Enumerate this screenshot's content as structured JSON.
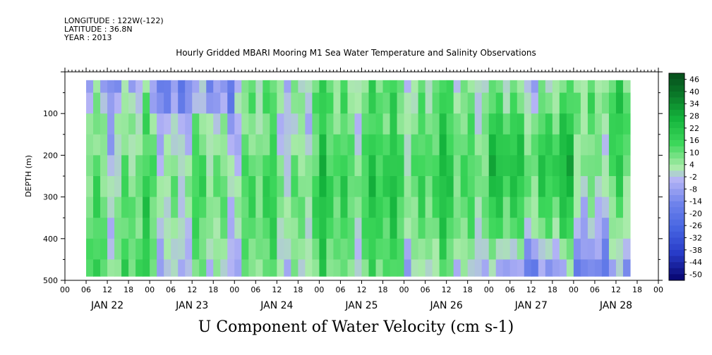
{
  "header": {
    "longitude": "LONGITUDE : 122W(-122)",
    "latitude": "LATITUDE : 36.8N",
    "year": "YEAR : 2013"
  },
  "chart_data": {
    "type": "heatmap",
    "title": "Hourly Gridded MBARI Mooring M1 Sea Water Temperature and Salinity Observations",
    "xlabel": "U Component of Water Velocity (cm s-1)",
    "ylabel": "DEPTH (m)",
    "x_range_hours": [
      0,
      168
    ],
    "ylim": [
      500,
      0
    ],
    "y_ticks": [
      100,
      200,
      300,
      400,
      500
    ],
    "x_tick_labels": [
      "00",
      "06",
      "12",
      "18",
      "00",
      "06",
      "12",
      "18",
      "00",
      "06",
      "12",
      "18",
      "00",
      "06",
      "12",
      "18",
      "00",
      "06",
      "12",
      "18",
      "00",
      "06",
      "12",
      "18",
      "00",
      "06",
      "12",
      "18",
      "00"
    ],
    "day_labels": [
      "JAN 22",
      "JAN 23",
      "JAN 24",
      "JAN 25",
      "JAN 26",
      "JAN 27",
      "JAN 28"
    ],
    "colorbar_labels": [
      "46",
      "40",
      "34",
      "28",
      "22",
      "16",
      "10",
      "4",
      "-2",
      "-8",
      "-14",
      "-20",
      "-26",
      "-32",
      "-38",
      "-44",
      "-50"
    ],
    "depth_bins": [
      25,
      75,
      125,
      175,
      225,
      275,
      325,
      375,
      425,
      475
    ],
    "day_means": [
      [
        -4,
        2,
        6,
        4,
        8,
        10,
        12,
        10,
        12,
        14
      ],
      [
        -10,
        -8,
        2,
        4,
        8,
        10,
        8,
        6,
        4,
        2
      ],
      [
        6,
        8,
        4,
        6,
        10,
        12,
        12,
        10,
        8,
        6
      ],
      [
        10,
        12,
        10,
        14,
        16,
        18,
        16,
        14,
        12,
        10
      ],
      [
        8,
        10,
        12,
        14,
        16,
        16,
        14,
        12,
        8,
        4
      ],
      [
        4,
        8,
        14,
        18,
        20,
        18,
        14,
        10,
        0,
        -8
      ],
      [
        10,
        14,
        12,
        10,
        12,
        8,
        4,
        0,
        -4,
        -10
      ]
    ]
  }
}
